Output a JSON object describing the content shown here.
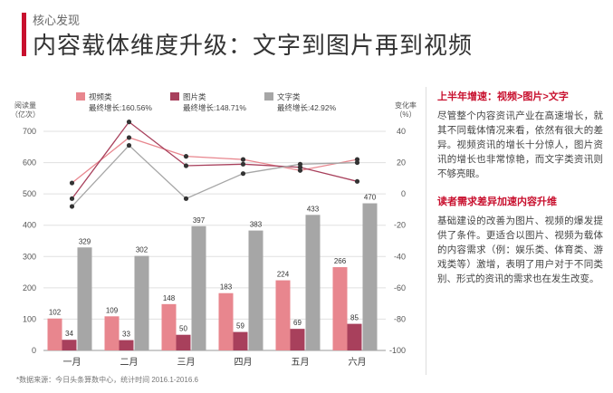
{
  "header": {
    "section": "核心发现",
    "title": "内容载体维度升级：文字到图片再到视频"
  },
  "footnote": "*数据来源：今日头条算数中心，统计时间 2016.1-2016.6",
  "panel": {
    "heading1": "上半年增速：视频>图片>文字",
    "text1": "尽管整个内容资讯产业在高速增长，就其不同载体情况来看，依然有很大的差异。视频资讯的增长十分惊人，图片资讯的增长也非常惊艳，而文字类资讯则不够亮眼。",
    "heading2": "读者需求差异加速内容升维",
    "text2": "基础建设的改善为图片、视频的爆发提供了条件。更适合以图片、视频为载体的内容需求（例：娱乐类、体育类、游戏类等）激增，表明了用户对于不同类别、形式的资讯的需求也在发生改变。"
  },
  "chart_data": {
    "type": "bar",
    "ylabel_left": "阅读量（亿次）",
    "ylabel_right": "变化率（%）",
    "categories": [
      "一月",
      "二月",
      "三月",
      "四月",
      "五月",
      "六月"
    ],
    "ylim_left": [
      0,
      700
    ],
    "yticks_left": [
      0,
      100,
      200,
      300,
      400,
      500,
      600,
      700
    ],
    "ylim_right": [
      -100,
      40
    ],
    "yticks_right": [
      -100,
      -80,
      -60,
      -40,
      -20,
      0,
      20,
      40
    ],
    "series": [
      {
        "name": "视频类",
        "sublabel": "最终增长:160.56%",
        "color": "#e8868e",
        "values": [
          102,
          109,
          148,
          183,
          224,
          266
        ]
      },
      {
        "name": "图片类",
        "sublabel": "最终增长:148.71%",
        "color": "#a8405c",
        "values": [
          34,
          33,
          50,
          59,
          69,
          85
        ]
      },
      {
        "name": "文字类",
        "sublabel": "最终增长:42.92%",
        "color": "#a6a6a6",
        "values": [
          329,
          302,
          397,
          383,
          433,
          470
        ]
      }
    ],
    "line_series": [
      {
        "color": "#e8868e",
        "x": [
          0.5,
          1.5,
          2.5,
          3.5,
          4.5,
          5.5
        ],
        "values": [
          7,
          36,
          24,
          22,
          15,
          22
        ]
      },
      {
        "color": "#a8405c",
        "x": [
          0.5,
          1.5,
          2.5,
          3.5,
          4.5,
          5.5
        ],
        "values": [
          -3,
          46,
          18,
          19,
          17,
          8
        ]
      },
      {
        "color": "#a6a6a6",
        "x": [
          0.5,
          1.5,
          2.5,
          3.5,
          4.5,
          5.5
        ],
        "values": [
          -8,
          31,
          -3,
          13,
          19,
          20
        ]
      }
    ],
    "gridlines": true,
    "legend": "top"
  }
}
